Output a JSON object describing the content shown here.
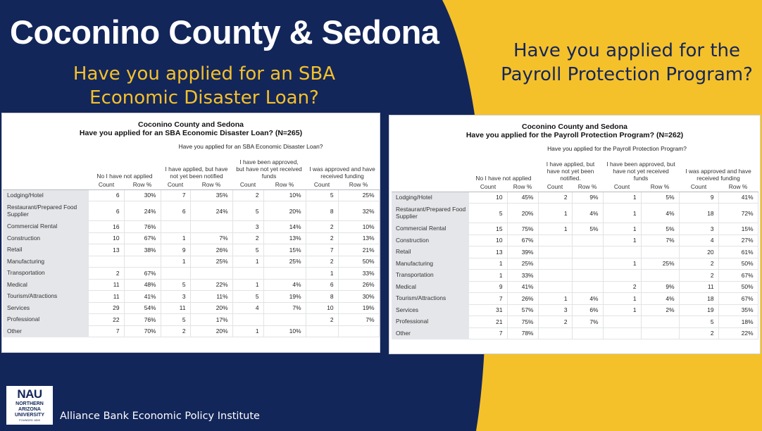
{
  "colors": {
    "navy": "#13265a",
    "gold": "#f5c12a",
    "white": "#ffffff"
  },
  "main_title": "Coconino County & Sedona",
  "left_question": "Have you applied for an SBA Economic Disaster Loan?",
  "right_question": "Have you applied for the Payroll Protection Program?",
  "left_table": {
    "title": "Coconino County and Sedona",
    "question": "Have you applied for an SBA Economic Disaster Loan? (N=265)",
    "header": "Have you applied for an SBA Economic Disaster Loan?",
    "groups": [
      "No I have not applied",
      "I have applied, but have not yet been notified",
      "I have been approved, but have not yet received funds",
      "I was approved and have received funding"
    ],
    "subheads": [
      "Count",
      "Row %",
      "Count",
      "Row %",
      "Count",
      "Row %",
      "Count",
      "Row %"
    ],
    "rows": [
      {
        "label": "Lodging/Hotel",
        "cells": [
          "6",
          "30%",
          "7",
          "35%",
          "2",
          "10%",
          "5",
          "25%"
        ]
      },
      {
        "label": "Restaurant/Prepared Food Supplier",
        "cells": [
          "6",
          "24%",
          "6",
          "24%",
          "5",
          "20%",
          "8",
          "32%"
        ]
      },
      {
        "label": "Commercial Rental",
        "cells": [
          "16",
          "76%",
          "",
          "",
          "3",
          "14%",
          "2",
          "10%"
        ]
      },
      {
        "label": "Construction",
        "cells": [
          "10",
          "67%",
          "1",
          "7%",
          "2",
          "13%",
          "2",
          "13%"
        ]
      },
      {
        "label": "Retail",
        "cells": [
          "13",
          "38%",
          "9",
          "26%",
          "5",
          "15%",
          "7",
          "21%"
        ]
      },
      {
        "label": "Manufacturing",
        "cells": [
          "",
          "",
          "1",
          "25%",
          "1",
          "25%",
          "2",
          "50%"
        ]
      },
      {
        "label": "Transportation",
        "cells": [
          "2",
          "67%",
          "",
          "",
          "",
          "",
          "1",
          "33%"
        ]
      },
      {
        "label": "Medical",
        "cells": [
          "11",
          "48%",
          "5",
          "22%",
          "1",
          "4%",
          "6",
          "26%"
        ]
      },
      {
        "label": "Tourism/Attractions",
        "cells": [
          "11",
          "41%",
          "3",
          "11%",
          "5",
          "19%",
          "8",
          "30%"
        ]
      },
      {
        "label": "Services",
        "cells": [
          "29",
          "54%",
          "11",
          "20%",
          "4",
          "7%",
          "10",
          "19%"
        ]
      },
      {
        "label": "Professional",
        "cells": [
          "22",
          "76%",
          "5",
          "17%",
          "",
          "",
          "2",
          "7%"
        ]
      },
      {
        "label": "Other",
        "cells": [
          "7",
          "70%",
          "2",
          "20%",
          "1",
          "10%",
          "",
          ""
        ]
      }
    ]
  },
  "right_table": {
    "title": "Coconino County and Sedona",
    "question": "Have you applied for the Payroll Protection Program? (N=262)",
    "header": "Have you applied for the Payroll Protection Program?",
    "groups": [
      "No I have not applied",
      "I have applied, but have not yet been notified.",
      "I have been approved, but have not yet received funds",
      "I was approved and have received funding"
    ],
    "subheads": [
      "Count",
      "Row %",
      "Count",
      "Row %",
      "Count",
      "Row %",
      "Count",
      "Row %"
    ],
    "rows": [
      {
        "label": "Lodging/Hotel",
        "cells": [
          "10",
          "45%",
          "2",
          "9%",
          "1",
          "5%",
          "9",
          "41%"
        ]
      },
      {
        "label": "Restaurant/Prepared Food Supplier",
        "cells": [
          "5",
          "20%",
          "1",
          "4%",
          "1",
          "4%",
          "18",
          "72%"
        ]
      },
      {
        "label": "Commercial Rental",
        "cells": [
          "15",
          "75%",
          "1",
          "5%",
          "1",
          "5%",
          "3",
          "15%"
        ]
      },
      {
        "label": "Construction",
        "cells": [
          "10",
          "67%",
          "",
          "",
          "1",
          "7%",
          "4",
          "27%"
        ]
      },
      {
        "label": "Retail",
        "cells": [
          "13",
          "39%",
          "",
          "",
          "",
          "",
          "20",
          "61%"
        ]
      },
      {
        "label": "Manufacturing",
        "cells": [
          "1",
          "25%",
          "",
          "",
          "1",
          "25%",
          "2",
          "50%"
        ]
      },
      {
        "label": "Transportation",
        "cells": [
          "1",
          "33%",
          "",
          "",
          "",
          "",
          "2",
          "67%"
        ]
      },
      {
        "label": "Medical",
        "cells": [
          "9",
          "41%",
          "",
          "",
          "2",
          "9%",
          "11",
          "50%"
        ]
      },
      {
        "label": "Tourism/Attractions",
        "cells": [
          "7",
          "26%",
          "1",
          "4%",
          "1",
          "4%",
          "18",
          "67%"
        ]
      },
      {
        "label": "Services",
        "cells": [
          "31",
          "57%",
          "3",
          "6%",
          "1",
          "2%",
          "19",
          "35%"
        ]
      },
      {
        "label": "Professional",
        "cells": [
          "21",
          "75%",
          "2",
          "7%",
          "",
          "",
          "5",
          "18%"
        ]
      },
      {
        "label": "Other",
        "cells": [
          "7",
          "78%",
          "",
          "",
          "",
          "",
          "2",
          "22%"
        ]
      }
    ]
  },
  "logo": {
    "name": "NAU",
    "line1": "NORTHERN",
    "line2": "ARIZONA",
    "line3": "UNIVERSITY",
    "founded": "FOUNDED 1899"
  },
  "footer": "Alliance Bank Economic Policy Institute"
}
